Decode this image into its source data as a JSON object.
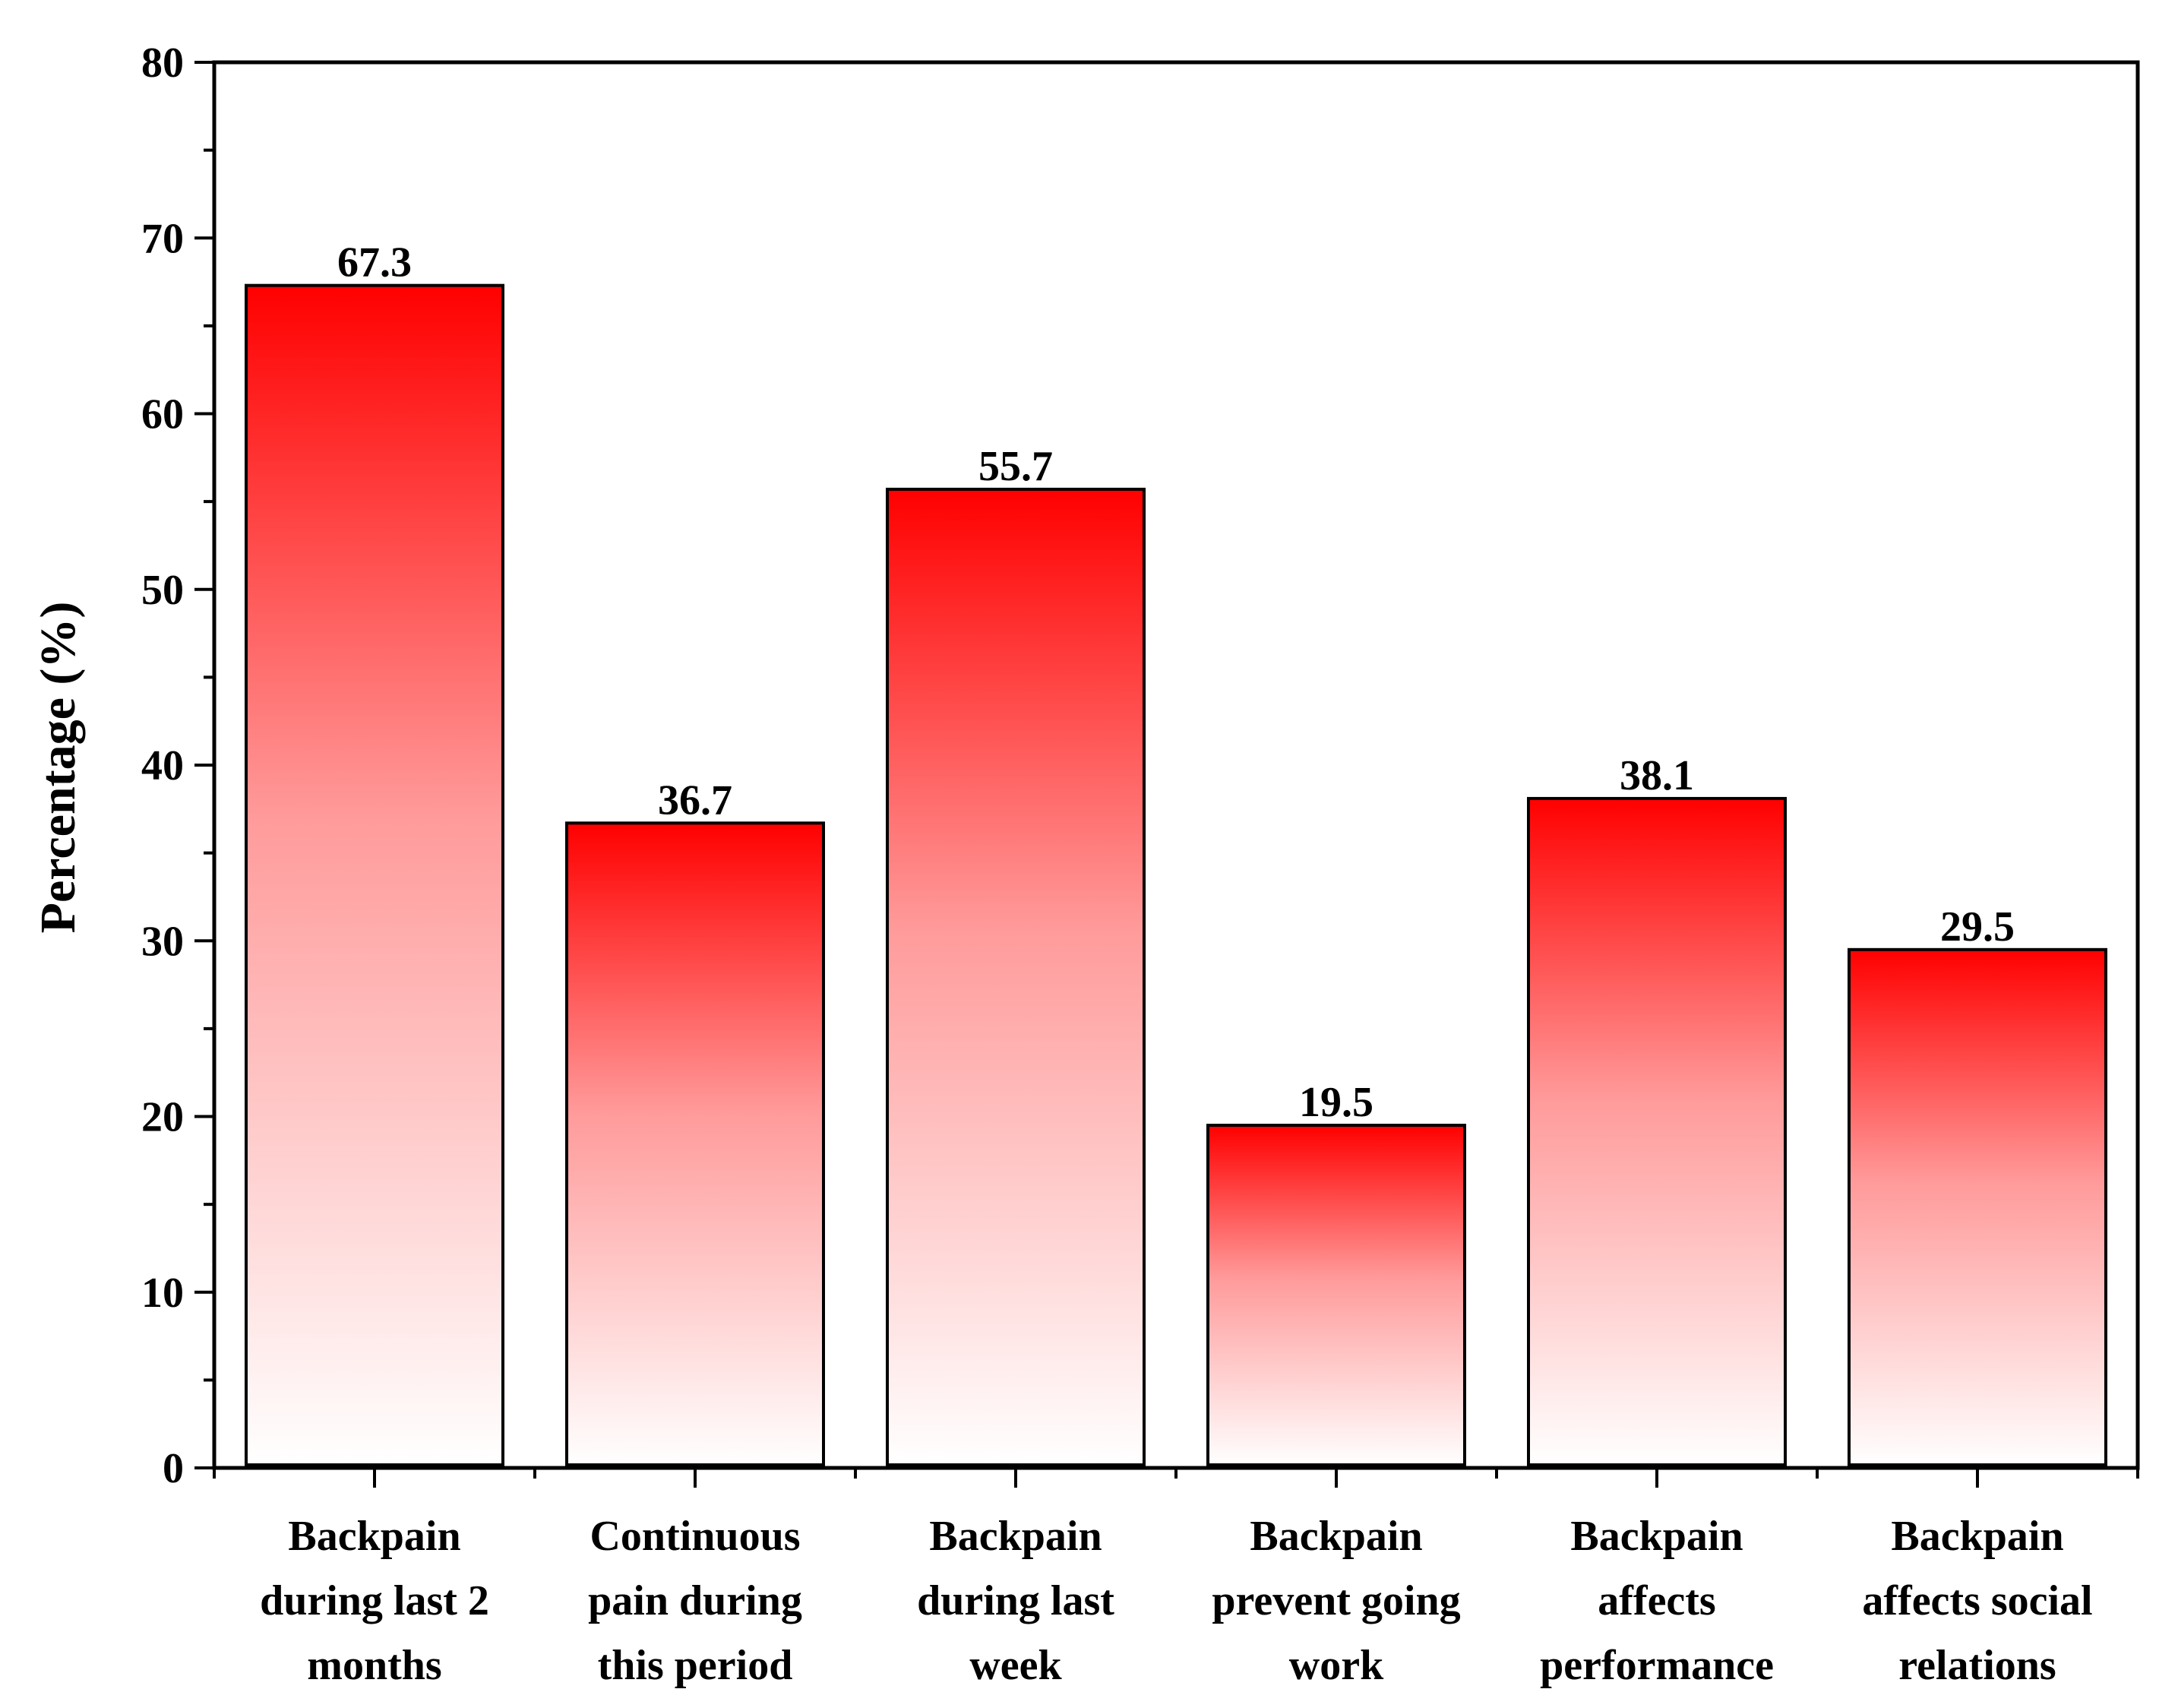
{
  "chart_data": {
    "type": "bar",
    "categories": [
      [
        "Backpain",
        "during last 2",
        "months"
      ],
      [
        "Continuous",
        "pain during",
        "this period"
      ],
      [
        "Backpain",
        "during last",
        "week"
      ],
      [
        "Backpain",
        "prevent going",
        "work"
      ],
      [
        "Backpain",
        "affects",
        "performance"
      ],
      [
        "Backpain",
        "affects social",
        "relations"
      ]
    ],
    "values": [
      67.3,
      36.7,
      55.7,
      19.5,
      38.1,
      29.5
    ],
    "value_labels": [
      "67.3",
      "36.7",
      "55.7",
      "19.5",
      "38.1",
      "29.5"
    ],
    "title": "",
    "xlabel": "",
    "ylabel": "Percentage (%)",
    "ylim": [
      0,
      80
    ],
    "yticks": [
      0,
      10,
      20,
      30,
      40,
      50,
      60,
      70,
      80
    ],
    "ytick_labels": [
      "0",
      "10",
      "20",
      "30",
      "40",
      "50",
      "60",
      "70",
      "80"
    ],
    "grid": false,
    "legend": "none",
    "colors": {
      "bar_top": "#ff0000",
      "bar_bottom": "#ffffff",
      "bar_outline": "#000000",
      "axis": "#000000"
    }
  }
}
